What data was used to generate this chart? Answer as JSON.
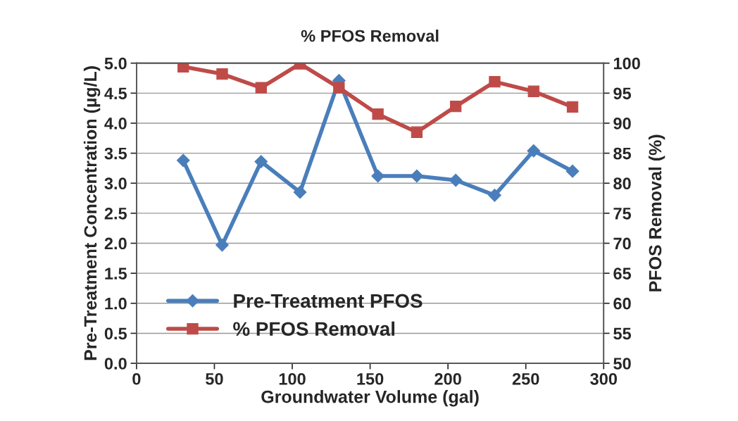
{
  "chart_data": {
    "type": "line",
    "title": "% PFOS Removal",
    "xlabel": "Groundwater Volume (gal)",
    "ylabel": "Pre-Treatment Concentration (µg/L)",
    "y2label": "PFOS Removal (%)",
    "x": [
      30,
      55,
      80,
      105,
      130,
      155,
      180,
      205,
      230,
      255,
      280
    ],
    "series": [
      {
        "name": "Pre-Treatment PFOS",
        "color": "#4a7ebb",
        "marker": "diamond",
        "values": [
          3.38,
          1.97,
          3.36,
          2.85,
          4.71,
          3.12,
          3.12,
          3.05,
          2.8,
          3.54,
          3.2
        ]
      },
      {
        "name": "% PFOS Removal",
        "color": "#be4b48",
        "marker": "square",
        "axis": "y2",
        "values": [
          99.4,
          98.2,
          95.9,
          99.9,
          95.9,
          91.5,
          88.5,
          92.8,
          96.9,
          95.3,
          92.7
        ]
      }
    ],
    "xlim": [
      0,
      300
    ],
    "xticks": [
      0,
      50,
      100,
      150,
      200,
      250,
      300
    ],
    "ylim": [
      0,
      5
    ],
    "yticks": [
      {
        "value": 0,
        "label": "0.0"
      },
      {
        "value": 0.5,
        "label": "0.5"
      },
      {
        "value": 1,
        "label": "1.0"
      },
      {
        "value": 1.5,
        "label": "1.5"
      },
      {
        "value": 2,
        "label": "2.0"
      },
      {
        "value": 2.5,
        "label": "2.5"
      },
      {
        "value": 3,
        "label": "3.0"
      },
      {
        "value": 3.5,
        "label": "3.5"
      },
      {
        "value": 4,
        "label": "4.0"
      },
      {
        "value": 4.5,
        "label": "4.5"
      },
      {
        "value": 5,
        "label": "5.0"
      }
    ],
    "y2lim": [
      50,
      100
    ],
    "y2ticks": [
      50,
      55,
      60,
      65,
      70,
      75,
      80,
      85,
      90,
      95,
      100
    ],
    "grid": "y",
    "legend": "bottom left",
    "line_style": "solid"
  }
}
